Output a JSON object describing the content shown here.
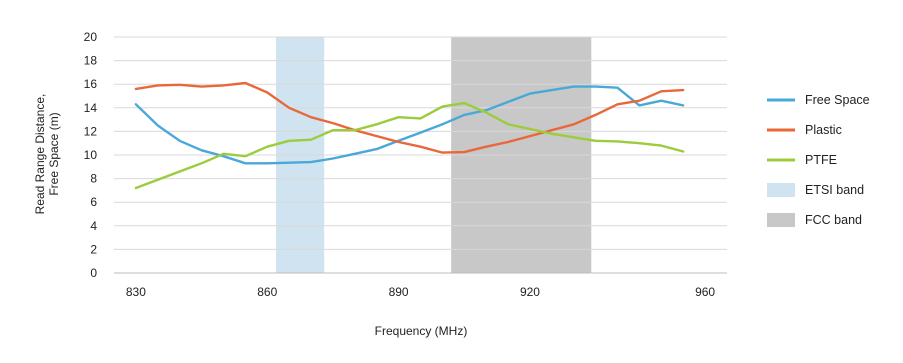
{
  "chart_data": {
    "type": "line",
    "title": "",
    "xlabel": "Frequency (MHz)",
    "ylabel_lines": [
      "Read Range Distance,",
      "Free Space (m)"
    ],
    "xlim": [
      825,
      965
    ],
    "ylim": [
      0,
      20
    ],
    "x_ticks": [
      830,
      860,
      890,
      920,
      960
    ],
    "y_ticks": [
      0,
      2,
      4,
      6,
      8,
      10,
      12,
      14,
      16,
      18,
      20
    ],
    "grid": true,
    "legend_position": "right",
    "bands": [
      {
        "name": "ETSI band",
        "x0": 862,
        "x1": 873,
        "color": "#cfe3f0"
      },
      {
        "name": "FCC band",
        "x0": 902,
        "x1": 934,
        "color": "#c8c8c8"
      }
    ],
    "series": [
      {
        "name": "Free Space",
        "color": "#4aa8d8",
        "points": [
          [
            830,
            14.3
          ],
          [
            835,
            12.5
          ],
          [
            840,
            11.2
          ],
          [
            845,
            10.4
          ],
          [
            850,
            9.9
          ],
          [
            855,
            9.3
          ],
          [
            860,
            9.3
          ],
          [
            865,
            9.35
          ],
          [
            870,
            9.4
          ],
          [
            875,
            9.7
          ],
          [
            880,
            10.1
          ],
          [
            885,
            10.5
          ],
          [
            890,
            11.2
          ],
          [
            895,
            11.9
          ],
          [
            900,
            12.6
          ],
          [
            905,
            13.4
          ],
          [
            910,
            13.8
          ],
          [
            915,
            14.5
          ],
          [
            920,
            15.2
          ],
          [
            925,
            15.5
          ],
          [
            930,
            15.8
          ],
          [
            935,
            15.8
          ],
          [
            940,
            15.7
          ],
          [
            945,
            14.2
          ],
          [
            950,
            14.6
          ],
          [
            955,
            14.2
          ]
        ]
      },
      {
        "name": "Plastic",
        "color": "#e8683a",
        "points": [
          [
            830,
            15.6
          ],
          [
            835,
            15.9
          ],
          [
            840,
            15.95
          ],
          [
            845,
            15.8
          ],
          [
            850,
            15.9
          ],
          [
            855,
            16.1
          ],
          [
            860,
            15.3
          ],
          [
            865,
            14.0
          ],
          [
            870,
            13.2
          ],
          [
            875,
            12.7
          ],
          [
            880,
            12.1
          ],
          [
            885,
            11.6
          ],
          [
            890,
            11.1
          ],
          [
            895,
            10.7
          ],
          [
            900,
            10.2
          ],
          [
            905,
            10.25
          ],
          [
            910,
            10.7
          ],
          [
            915,
            11.1
          ],
          [
            920,
            11.6
          ],
          [
            925,
            12.1
          ],
          [
            930,
            12.6
          ],
          [
            935,
            13.4
          ],
          [
            940,
            14.3
          ],
          [
            945,
            14.6
          ],
          [
            950,
            15.4
          ],
          [
            955,
            15.5
          ]
        ]
      },
      {
        "name": "PTFE",
        "color": "#9ccb3b",
        "points": [
          [
            830,
            7.2
          ],
          [
            835,
            7.9
          ],
          [
            840,
            8.6
          ],
          [
            845,
            9.3
          ],
          [
            850,
            10.1
          ],
          [
            855,
            9.9
          ],
          [
            860,
            10.7
          ],
          [
            865,
            11.2
          ],
          [
            870,
            11.3
          ],
          [
            875,
            12.1
          ],
          [
            880,
            12.1
          ],
          [
            885,
            12.6
          ],
          [
            890,
            13.2
          ],
          [
            895,
            13.1
          ],
          [
            900,
            14.1
          ],
          [
            905,
            14.4
          ],
          [
            910,
            13.6
          ],
          [
            915,
            12.6
          ],
          [
            920,
            12.2
          ],
          [
            925,
            11.8
          ],
          [
            930,
            11.5
          ],
          [
            935,
            11.2
          ],
          [
            940,
            11.15
          ],
          [
            945,
            11.0
          ],
          [
            950,
            10.8
          ],
          [
            955,
            10.3
          ]
        ]
      }
    ]
  }
}
